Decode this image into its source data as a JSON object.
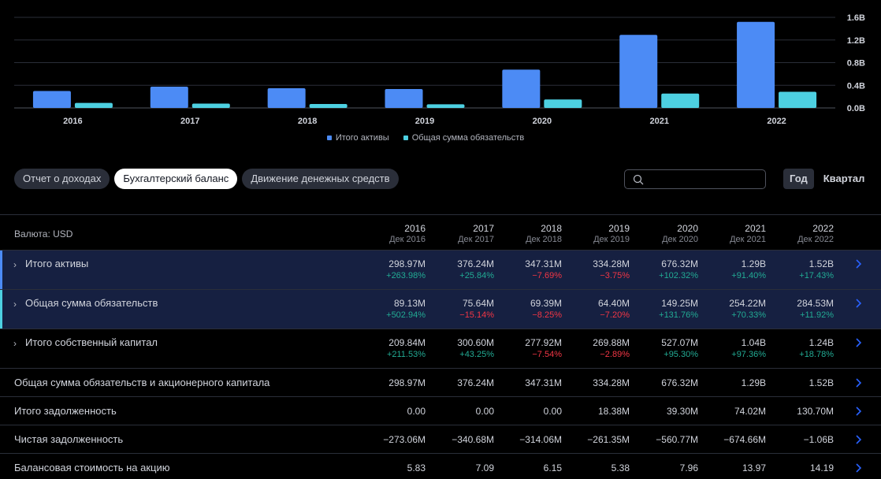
{
  "chart_data": {
    "type": "bar",
    "categories": [
      "2016",
      "2017",
      "2018",
      "2019",
      "2020",
      "2021",
      "2022"
    ],
    "series": [
      {
        "name": "Итого активы",
        "color": "#4c8bf5",
        "values": [
          0.299,
          0.376,
          0.347,
          0.334,
          0.676,
          1.29,
          1.52
        ]
      },
      {
        "name": "Общая сумма обязательств",
        "color": "#4dd0e1",
        "values": [
          0.089,
          0.076,
          0.069,
          0.064,
          0.149,
          0.254,
          0.285
        ]
      }
    ],
    "y_unit": "B",
    "ylim": [
      0,
      1.6
    ],
    "yticks": [
      "0.0B",
      "0.4B",
      "0.8B",
      "1.2B",
      "1.6B"
    ],
    "ytick_values": [
      0,
      0.4,
      0.8,
      1.2,
      1.6
    ],
    "grid": true,
    "legend_position": "bottom-center"
  },
  "legend": [
    {
      "label": "Итого активы",
      "color": "#4c8bf5"
    },
    {
      "label": "Общая сумма обязательств",
      "color": "#4dd0e1"
    }
  ],
  "tabs": [
    {
      "label": "Отчет о доходах",
      "active": false
    },
    {
      "label": "Бухгалтерский баланс",
      "active": true
    },
    {
      "label": "Движение денежных средств",
      "active": false
    }
  ],
  "search": {
    "placeholder": "",
    "value": ""
  },
  "period_toggle": {
    "year": "Год",
    "quarter": "Квартал",
    "selected": "Год"
  },
  "table": {
    "currency_label": "Валюта: USD",
    "columns": [
      {
        "year": "2016",
        "period": "Дек 2016"
      },
      {
        "year": "2017",
        "period": "Дек 2017"
      },
      {
        "year": "2018",
        "period": "Дек 2018"
      },
      {
        "year": "2019",
        "period": "Дек 2019"
      },
      {
        "year": "2020",
        "period": "Дек 2020"
      },
      {
        "year": "2021",
        "period": "Дек 2021"
      },
      {
        "year": "2022",
        "period": "Дек 2022"
      }
    ],
    "rows": [
      {
        "label": "Итого активы",
        "expandable": true,
        "highlight": "#4c8bf5",
        "values": [
          "298.97M",
          "376.24M",
          "347.31M",
          "334.28M",
          "676.32M",
          "1.29B",
          "1.52B"
        ],
        "changes": [
          "+263.98%",
          "+25.84%",
          "−7.69%",
          "−3.75%",
          "+102.32%",
          "+91.40%",
          "+17.43%"
        ]
      },
      {
        "label": "Общая сумма обязательств",
        "expandable": true,
        "highlight": "#4dd0e1",
        "values": [
          "89.13M",
          "75.64M",
          "69.39M",
          "64.40M",
          "149.25M",
          "254.22M",
          "284.53M"
        ],
        "changes": [
          "+502.94%",
          "−15.14%",
          "−8.25%",
          "−7.20%",
          "+131.76%",
          "+70.33%",
          "+11.92%"
        ]
      },
      {
        "label": "Итого собственный капитал",
        "expandable": true,
        "highlight": null,
        "values": [
          "209.84M",
          "300.60M",
          "277.92M",
          "269.88M",
          "527.07M",
          "1.04B",
          "1.24B"
        ],
        "changes": [
          "+211.53%",
          "+43.25%",
          "−7.54%",
          "−2.89%",
          "+95.30%",
          "+97.36%",
          "+18.78%"
        ]
      },
      {
        "label": "Общая сумма обязательств и акционерного капитала",
        "expandable": false,
        "highlight": null,
        "values": [
          "298.97M",
          "376.24M",
          "347.31M",
          "334.28M",
          "676.32M",
          "1.29B",
          "1.52B"
        ],
        "changes": null
      },
      {
        "label": "Итого задолженность",
        "expandable": false,
        "highlight": null,
        "values": [
          "0.00",
          "0.00",
          "0.00",
          "18.38M",
          "39.30M",
          "74.02M",
          "130.70M"
        ],
        "changes": null
      },
      {
        "label": "Чистая задолженность",
        "expandable": false,
        "highlight": null,
        "values": [
          "−273.06M",
          "−340.68M",
          "−314.06M",
          "−261.35M",
          "−560.77M",
          "−674.66M",
          "−1.06B"
        ],
        "changes": null
      },
      {
        "label": "Балансовая стоимость на акцию",
        "expandable": false,
        "highlight": null,
        "values": [
          "5.83",
          "7.09",
          "6.15",
          "5.38",
          "7.96",
          "13.97",
          "14.19"
        ],
        "changes": null
      }
    ]
  }
}
